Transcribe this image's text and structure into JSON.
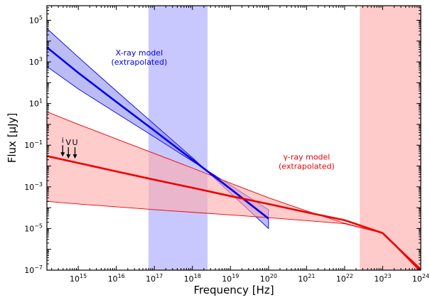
{
  "chart_data": {
    "type": "line",
    "x_scale": "log",
    "y_scale": "log",
    "xlabel": "Frequency [Hz]",
    "ylabel": "Flux [μJy]",
    "xlim": [
      150000000000000.0,
      1e+24
    ],
    "ylim": [
      1e-07,
      500000.0
    ],
    "x_ticks": [
      {
        "value": 1000000000000000.0,
        "base": "10",
        "exp": "15"
      },
      {
        "value": 1e+16,
        "base": "10",
        "exp": "16"
      },
      {
        "value": 1e+17,
        "base": "10",
        "exp": "17"
      },
      {
        "value": 1e+18,
        "base": "10",
        "exp": "18"
      },
      {
        "value": 1e+19,
        "base": "10",
        "exp": "19"
      },
      {
        "value": 1e+20,
        "base": "10",
        "exp": "20"
      },
      {
        "value": 1e+21,
        "base": "10",
        "exp": "21"
      },
      {
        "value": 1e+22,
        "base": "10",
        "exp": "22"
      },
      {
        "value": 1e+23,
        "base": "10",
        "exp": "23"
      },
      {
        "value": 1e+24,
        "base": "10",
        "exp": "24"
      }
    ],
    "y_ticks": [
      {
        "value": 100000.0,
        "base": "10",
        "exp": "5"
      },
      {
        "value": 1000.0,
        "base": "10",
        "exp": "3"
      },
      {
        "value": 10.0,
        "base": "10",
        "exp": "1"
      },
      {
        "value": 0.1,
        "base": "10",
        "exp": "−1"
      },
      {
        "value": 0.001,
        "base": "10",
        "exp": "−3"
      },
      {
        "value": 1e-05,
        "base": "10",
        "exp": "−5"
      },
      {
        "value": 1e-07,
        "base": "10",
        "exp": "−7"
      }
    ],
    "bands": [
      {
        "name": "X-ray band",
        "x_range": [
          7e+16,
          2.5e+18
        ],
        "color": "#c8c8ff"
      },
      {
        "name": "gamma-ray band",
        "x_range": [
          2.5e+22,
          1e+24
        ],
        "color": "#ffcaca"
      }
    ],
    "series": [
      {
        "name": "X-ray model (extrapolated)",
        "color": "#0000ee",
        "band_fill": "#9090ee",
        "x": [
          150000000000000.0,
          1000000000000000.0,
          1e+16,
          1e+17,
          1e+18,
          1e+19,
          1e+20
        ],
        "y": [
          5000,
          300,
          12,
          0.5,
          0.02,
          0.0008,
          3e-05
        ],
        "y_upper": [
          40000,
          1700,
          40,
          1,
          0.025,
          0.0005,
          1e-05
        ],
        "y_lower": [
          600,
          50,
          3.5,
          0.25,
          0.017,
          0.0012,
          8e-05
        ]
      },
      {
        "name": "γ-ray model (extrapolated)",
        "color": "#ee0000",
        "band_fill": "#ffaaaa",
        "x": [
          150000000000000.0,
          1000000000000000.0,
          1e+16,
          1e+17,
          1e+18,
          1e+19,
          1e+20,
          1e+21,
          1e+22,
          1e+23,
          1e+24
        ],
        "y": [
          0.03,
          0.014,
          0.0055,
          0.0022,
          0.0009,
          0.00036,
          0.00015,
          6e-05,
          2.5e-05,
          6e-06,
          1e-07
        ],
        "y_upper": [
          4,
          1,
          0.2,
          0.04,
          0.008,
          0.0015,
          0.0003,
          7e-05,
          1.8e-05,
          6e-06,
          1.2e-07
        ],
        "y_lower": [
          0.0002,
          0.00015,
          0.00011,
          8e-05,
          6e-05,
          4.5e-05,
          3.3e-05,
          2.4e-05,
          1.7e-05,
          6e-06,
          8e-08
        ]
      }
    ],
    "upper_limits": [
      {
        "label": "i",
        "x": 390000000000000.0,
        "y": 0.1
      },
      {
        "label": "V",
        "x": 550000000000000.0,
        "y": 0.08
      },
      {
        "label": "U",
        "x": 820000000000000.0,
        "y": 0.08
      }
    ],
    "annotations": [
      {
        "lines": [
          "X-ray model",
          "(extrapolated)"
        ],
        "x": 4e+16,
        "y": 2000,
        "color": "#0000ee"
      },
      {
        "lines": [
          "γ-ray model",
          "(extrapolated)"
        ],
        "x": 1e+21,
        "y": 0.02,
        "color": "#ee0000"
      }
    ]
  }
}
